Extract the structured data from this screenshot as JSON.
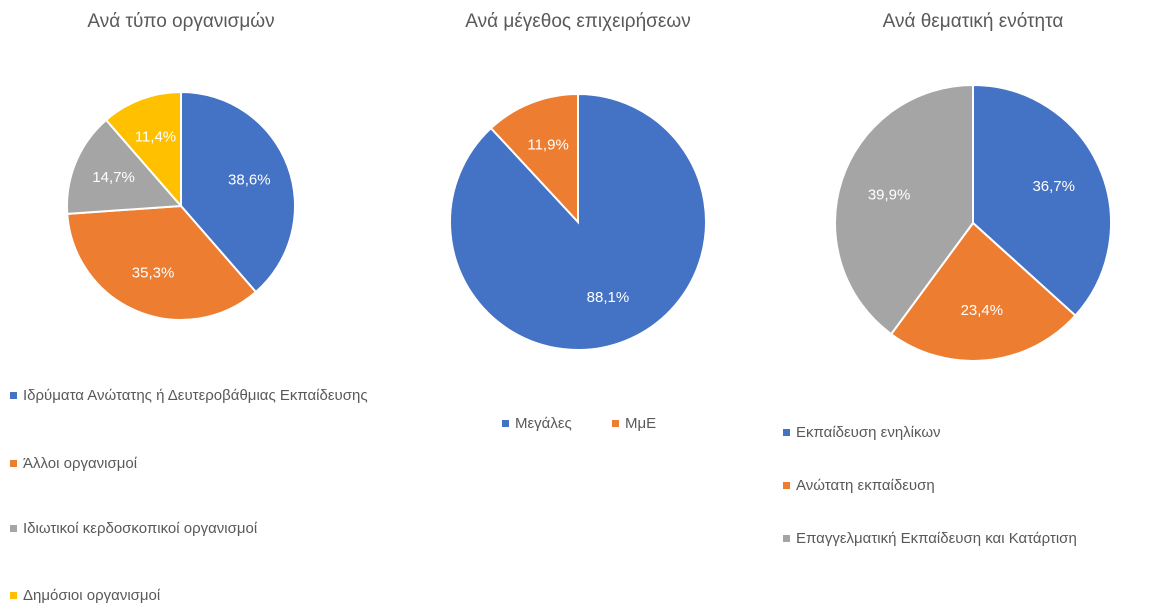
{
  "chart_data": [
    {
      "type": "pie",
      "title": "Ανά τύπο οργανισμών",
      "categories": [
        "Ιδρύματα Ανώτατης ή Δευτεροβάθμιας Εκπαίδευσης",
        "Άλλοι οργανισμοί",
        "Ιδιωτικοί κερδοσκοπικοί οργανισμοί",
        "Δημόσιοι οργανισμοί"
      ],
      "values": [
        38.6,
        35.3,
        14.7,
        11.4
      ],
      "value_labels": [
        "38,6%",
        "35,3%",
        "14,7%",
        "11,4%"
      ],
      "colors": [
        "#4472c4",
        "#ed7d31",
        "#a5a5a5",
        "#ffc000"
      ],
      "legend": "bottom"
    },
    {
      "type": "pie",
      "title": "Ανά μέγεθος επιχειρήσεων",
      "categories": [
        "Μεγάλες",
        "ΜμΕ"
      ],
      "values": [
        88.1,
        11.9
      ],
      "value_labels": [
        "88,1%",
        "11,9%"
      ],
      "colors": [
        "#4472c4",
        "#ed7d31"
      ],
      "legend": "bottom"
    },
    {
      "type": "pie",
      "title": "Ανά θεματική ενότητα",
      "categories": [
        "Εκπαίδευση ενηλίκων",
        "Ανώτατη εκπαίδευση",
        "Επαγγελματική Εκπαίδευση και Κατάρτιση"
      ],
      "values": [
        36.7,
        23.4,
        39.9
      ],
      "value_labels": [
        "36,7%",
        "23,4%",
        "39,9%"
      ],
      "colors": [
        "#4472c4",
        "#ed7d31",
        "#a5a5a5"
      ],
      "legend": "bottom"
    }
  ]
}
